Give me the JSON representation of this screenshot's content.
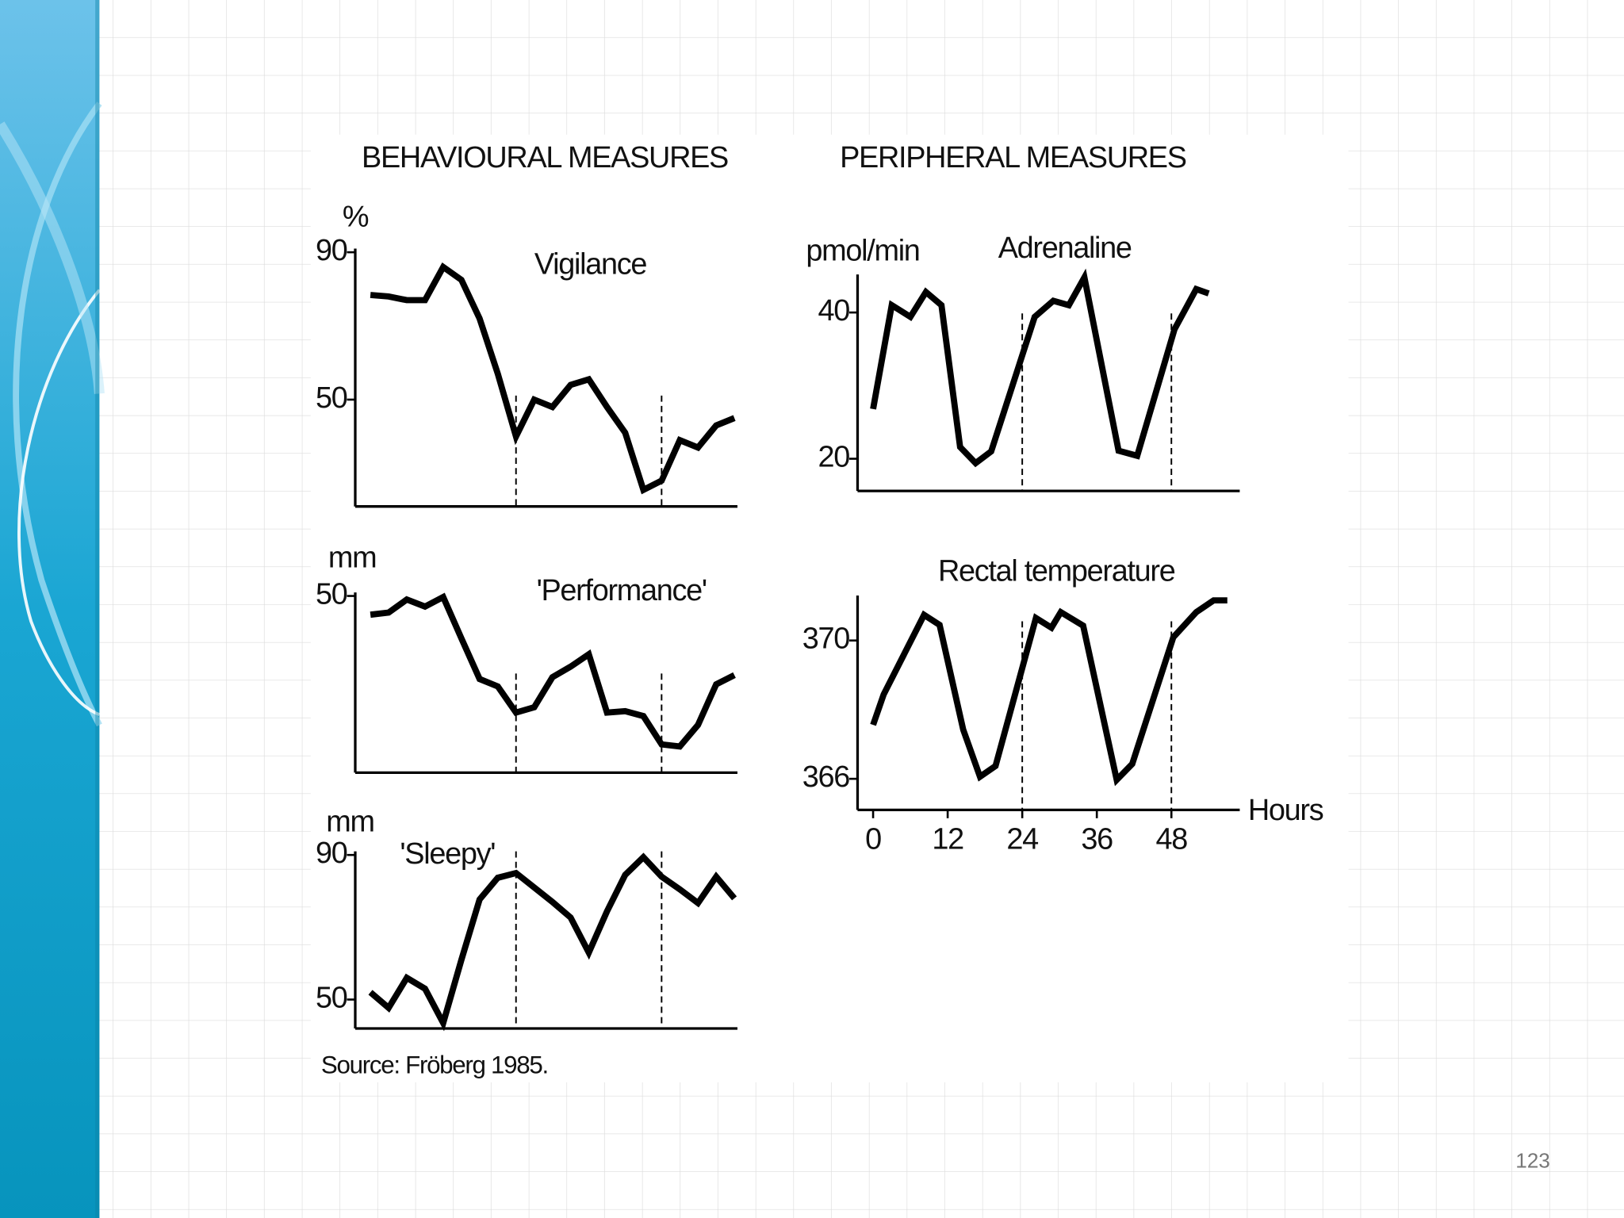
{
  "headings": [
    "BEHAVIOURAL MEASURES",
    "PERIPHERAL MEASURES"
  ],
  "source": "Source: Fröberg 1985.",
  "page_number": "123",
  "chart_data": [
    {
      "type": "line",
      "title": "Vigilance",
      "ylabel": "%",
      "x": [
        0,
        3,
        6,
        9,
        12,
        15,
        18,
        21,
        24,
        27,
        30,
        33,
        36,
        39,
        42,
        45,
        48,
        51,
        54,
        57,
        60
      ],
      "series": [
        {
          "name": "Vigilance",
          "color": "#000000",
          "values": [
            78.4,
            78,
            77,
            77,
            86,
            82.5,
            72,
            57,
            40,
            50,
            48,
            54,
            55.5,
            48,
            41,
            25.5,
            28,
            39,
            37,
            43,
            45
          ]
        }
      ],
      "xlim": [
        -2.5,
        60.5
      ],
      "ylim": [
        21,
        91
      ],
      "yticks": [
        50,
        90
      ],
      "vlines": [
        24,
        48
      ]
    },
    {
      "type": "line",
      "title": "'Performance'",
      "ylabel": "mm",
      "x": [
        0,
        3,
        6,
        9,
        12,
        15,
        18,
        21,
        24,
        27,
        30,
        33,
        36,
        39,
        42,
        45,
        48,
        51,
        54,
        57,
        60
      ],
      "series": [
        {
          "name": "'Performance'",
          "color": "#000000",
          "values": [
            44.7,
            45.3,
            49,
            47,
            49.7,
            38,
            26.5,
            24.4,
            17,
            18.5,
            27,
            30,
            33.5,
            17,
            17.4,
            16,
            8,
            7.4,
            13.5,
            25,
            27.6
          ]
        }
      ],
      "xlim": [
        -2.5,
        60.5
      ],
      "ylim": [
        0,
        51
      ],
      "yticks": [
        50
      ],
      "vlines": [
        24,
        48
      ]
    },
    {
      "type": "line",
      "title": "'Sleepy'",
      "ylabel": "mm",
      "x": [
        0,
        3,
        6,
        9,
        12,
        15,
        18,
        21,
        24,
        27,
        30,
        33,
        36,
        39,
        42,
        45,
        48,
        51,
        54,
        57,
        60
      ],
      "series": [
        {
          "name": "'Sleepy'",
          "color": "#000000",
          "values": [
            52,
            47.7,
            56,
            53,
            43.5,
            61,
            77.7,
            83.7,
            85,
            81,
            77,
            72.7,
            63,
            74.4,
            84.5,
            89.4,
            84,
            80.5,
            76.7,
            84,
            78
          ]
        }
      ],
      "xlim": [
        -2.5,
        60.5
      ],
      "ylim": [
        42,
        91
      ],
      "yticks": [
        50,
        90
      ],
      "vlines": [
        24,
        48
      ]
    },
    {
      "type": "line",
      "title": "Adrenaline",
      "ylabel": "pmol/min",
      "x": [
        0,
        3,
        6,
        8.5,
        11,
        14,
        16.5,
        19,
        26,
        29,
        31.5,
        34,
        39.5,
        42.5,
        48.5,
        52,
        54
      ],
      "series": [
        {
          "name": "Adrenaline",
          "color": "#000000",
          "values": [
            26.8,
            41,
            39.4,
            42.8,
            41,
            21.6,
            19.4,
            21,
            39.4,
            41.6,
            41,
            44.8,
            21.1,
            20.4,
            37.7,
            43.2,
            42.6
          ]
        }
      ],
      "xlim": [
        -2.5,
        59
      ],
      "ylim": [
        15.6,
        45.2
      ],
      "yticks": [
        20,
        40
      ],
      "vlines": [
        24,
        48
      ]
    },
    {
      "type": "line",
      "title": "Rectal temperature",
      "xlabel": "Hours",
      "x": [
        0,
        1.7,
        8.2,
        10.7,
        14.5,
        17.2,
        19.7,
        26.2,
        28.7,
        30.2,
        33.8,
        39.2,
        41.7,
        48.3,
        52,
        54.8,
        57
      ],
      "series": [
        {
          "name": "Rectal temperature",
          "color": "#000000",
          "values": [
            367.56,
            368.44,
            370.74,
            370.45,
            367.42,
            366.06,
            366.37,
            370.65,
            370.37,
            370.82,
            370.43,
            365.97,
            366.43,
            370.09,
            370.82,
            371.16,
            371.16
          ]
        }
      ],
      "xlim": [
        -2.5,
        59
      ],
      "ylim": [
        365.1,
        371.3
      ],
      "yticks": [
        366,
        370
      ],
      "xticks": [
        0,
        12,
        24,
        36,
        48
      ],
      "vlines": [
        24,
        48
      ]
    }
  ]
}
